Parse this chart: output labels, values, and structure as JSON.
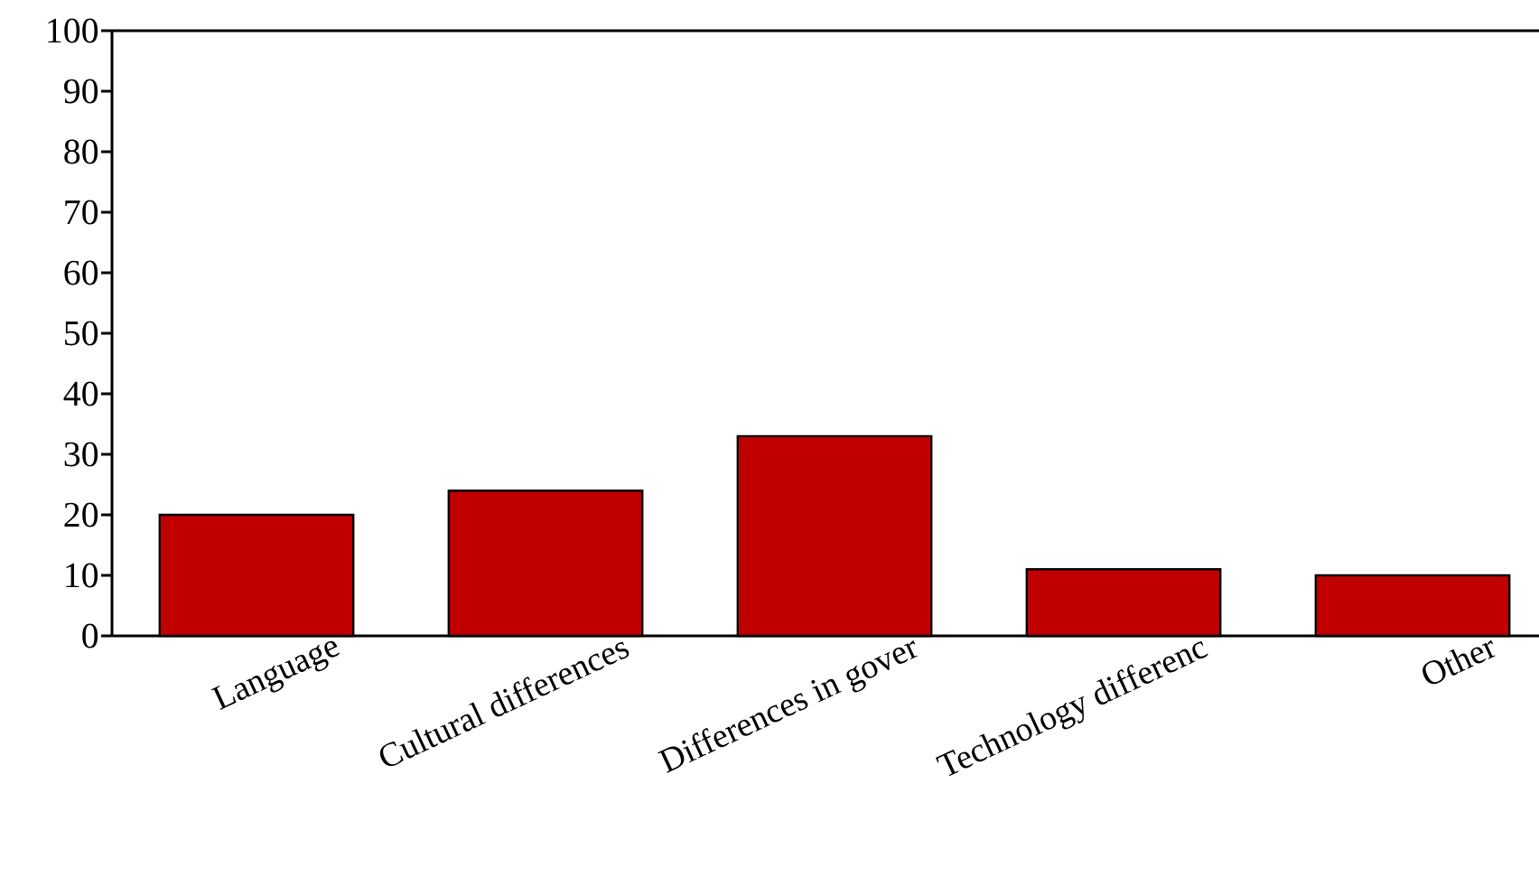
{
  "chart_data": {
    "type": "bar",
    "categories": [
      "Language",
      "Cultural differences",
      "Differences in gover",
      "Technology differenc",
      "Other"
    ],
    "values": [
      20,
      24,
      33,
      11,
      10
    ],
    "color": "#c00000",
    "ylim": [
      0,
      100
    ],
    "yticks": [
      0,
      10,
      20,
      30,
      40,
      50,
      60,
      70,
      80,
      90,
      100
    ],
    "grid": false
  }
}
